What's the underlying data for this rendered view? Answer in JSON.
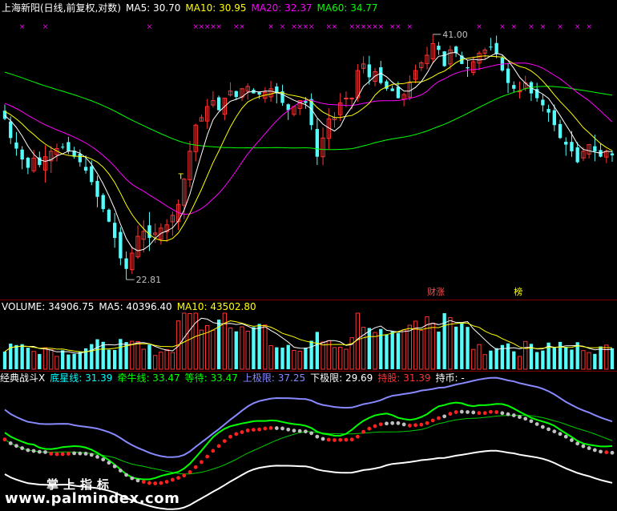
{
  "price_panel": {
    "title_parts": [
      {
        "text": "上海新阳(日线,前复权,对数)",
        "color": "#ffffff"
      },
      {
        "text": "MA5: 30.70",
        "color": "#ffffff"
      },
      {
        "text": "MA10: 30.95",
        "color": "#ffff00"
      },
      {
        "text": "MA20: 32.37",
        "color": "#ff00ff"
      },
      {
        "text": "MA60: 34.77",
        "color": "#00ff00"
      }
    ],
    "high_label": "41.00",
    "low_label": "22.81",
    "marker_t": "T",
    "tags": [
      "财涨",
      "榜"
    ],
    "ma5_color": "#ffffff",
    "ma10_color": "#ffff00",
    "ma20_color": "#ff00ff",
    "ma60_color": "#00ff00"
  },
  "volume_panel": {
    "title_parts": [
      {
        "text": "VOLUME: 34906.75",
        "color": "#ffffff"
      },
      {
        "text": "MA5: 40396.40",
        "color": "#ffffff"
      },
      {
        "text": "MA10: 43502.80",
        "color": "#ffff00"
      }
    ]
  },
  "indicator_panel": {
    "title_parts": [
      {
        "text": "经典战斗X",
        "color": "#ffffff"
      },
      {
        "text": "底星线: 31.39",
        "color": "#00ffff"
      },
      {
        "text": "牵牛线: 33.47",
        "color": "#00ff00"
      },
      {
        "text": "等待: 33.47",
        "color": "#00ff00"
      },
      {
        "text": "上极限: 37.25",
        "color": "#8888ff"
      },
      {
        "text": "下极限: 29.69",
        "color": "#ffffff"
      },
      {
        "text": "持股: 31.39",
        "color": "#ff3333"
      },
      {
        "text": "持币: -",
        "color": "#ffffff"
      }
    ]
  },
  "watermark": {
    "line1": "掌上指标",
    "line2": "www.palmindex.com"
  },
  "chart_data": {
    "type": "candlestick",
    "title": "上海新阳(日线,前复权,对数)",
    "price_range": [
      22.0,
      43.0
    ],
    "high": 41.0,
    "low": 22.81,
    "legend": [
      "MA5: 30.70",
      "MA10: 30.95",
      "MA20: 32.37",
      "MA60: 34.77"
    ],
    "closes": [
      33.5,
      32.0,
      31.2,
      30.4,
      29.8,
      30.5,
      30.0,
      30.6,
      31.0,
      31.2,
      31.3,
      31.0,
      30.6,
      30.2,
      29.6,
      28.8,
      27.8,
      27.0,
      26.2,
      25.2,
      24.0,
      23.4,
      24.3,
      25.3,
      25.6,
      25.2,
      25.5,
      25.8,
      26.0,
      26.6,
      27.3,
      29.0,
      31.0,
      33.0,
      33.6,
      34.5,
      35.0,
      34.2,
      35.2,
      35.8,
      35.3,
      36.0,
      36.2,
      35.6,
      35.5,
      35.7,
      36.0,
      35.6,
      34.8,
      34.2,
      34.5,
      35.0,
      34.8,
      33.0,
      30.6,
      32.0,
      33.5,
      33.6,
      34.8,
      35.2,
      35.2,
      37.6,
      38.2,
      37.0,
      37.5,
      36.5,
      36.0,
      35.8,
      35.2,
      35.5,
      36.5,
      37.6,
      38.3,
      39.0,
      40.1,
      39.5,
      38.0,
      39.5,
      39.2,
      38.2,
      37.8,
      38.4,
      39.2,
      39.5,
      39.8,
      39.1,
      37.6,
      36.5,
      36.0,
      35.8,
      36.5,
      35.6,
      35.2,
      34.6,
      34.0,
      33.0,
      32.0,
      31.5,
      31.0,
      30.2,
      31.0,
      31.5,
      31.0,
      30.6,
      31.0,
      30.7
    ],
    "volume": {
      "legend": [
        "VOLUME: 34906.75",
        "MA5: 40396.40",
        "MA10: 43502.80"
      ]
    },
    "indicator": {
      "name": "经典战斗X",
      "values": {
        "底星线": 31.39,
        "牵牛线": 33.47,
        "等待": 33.47,
        "上极限": 37.25,
        "下极限": 29.69,
        "持股": 31.39,
        "持币": "-"
      }
    }
  }
}
